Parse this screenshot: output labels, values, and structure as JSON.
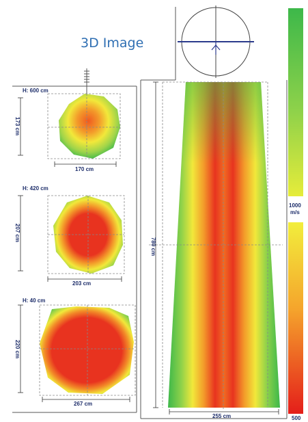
{
  "title": "3D Image",
  "sections": [
    {
      "height_label": "H: 600 cm",
      "vertical_dim": "173 cm",
      "horizontal_dim": "170 cm"
    },
    {
      "height_label": "H: 420 cm",
      "vertical_dim": "207 cm",
      "horizontal_dim": "203 cm"
    },
    {
      "height_label": "H: 40 cm",
      "vertical_dim": "220 cm",
      "horizontal_dim": "267 cm"
    }
  ],
  "longitudinal": {
    "height_dim": "780 cm",
    "base_dim": "255 cm"
  },
  "scale": {
    "top_label": "1000",
    "unit": "m/s",
    "bottom_label": "500"
  },
  "colors": {
    "title": "#2f6fb3",
    "dim_text": "#1d2d6a",
    "green": "#3db84a",
    "yellow": "#f2ea3c",
    "red": "#e82a1e"
  }
}
